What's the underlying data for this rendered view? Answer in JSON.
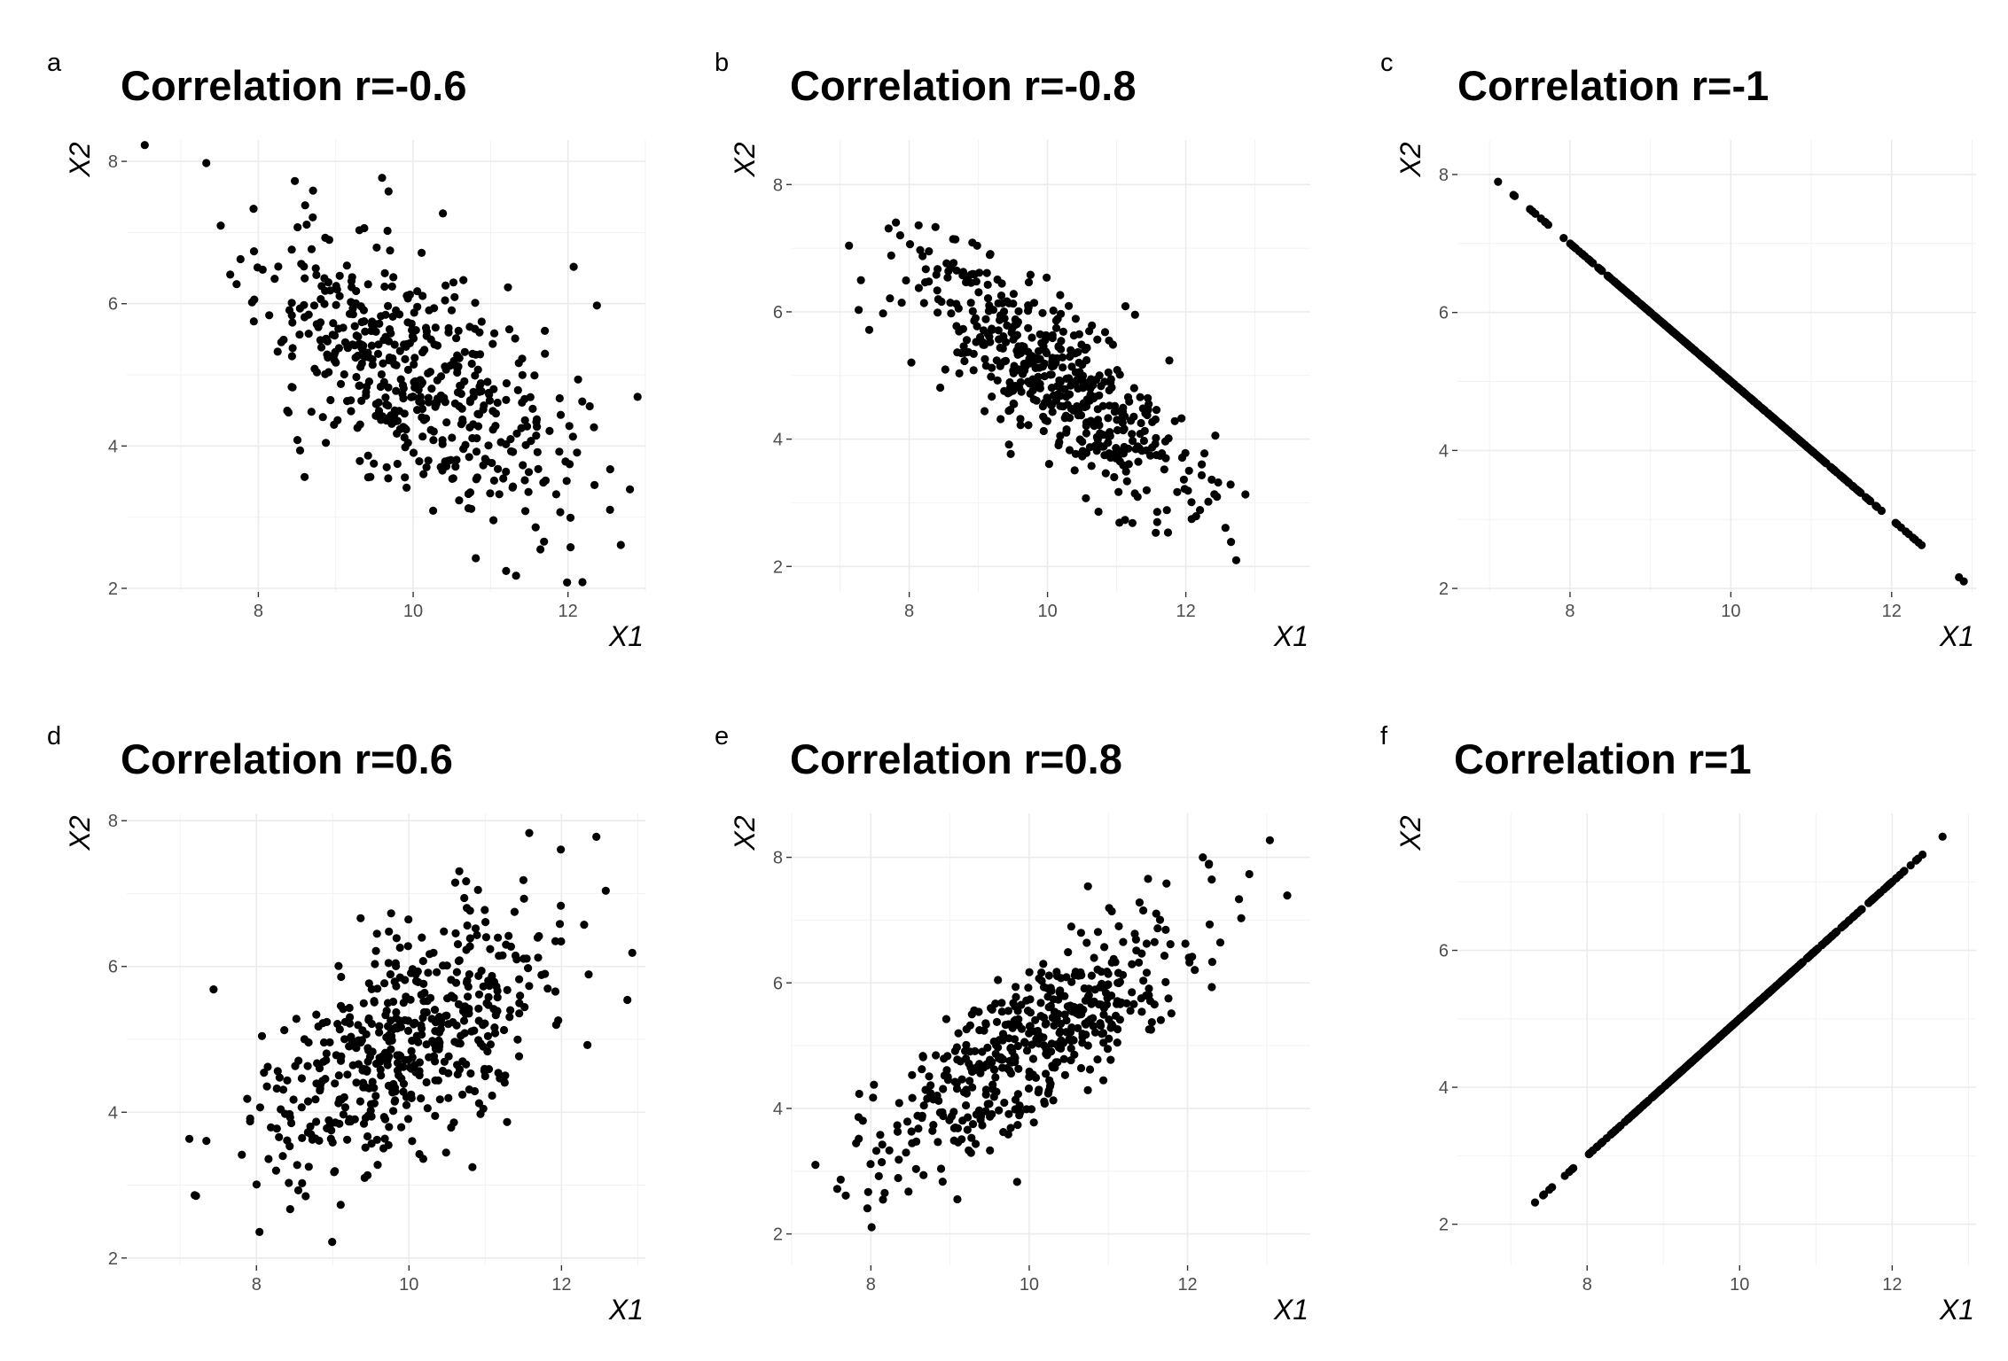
{
  "chart_data": [
    {
      "letter": "a",
      "type": "scatter",
      "title": "Correlation r=-0.6",
      "xlabel": "X1",
      "ylabel": "X2",
      "r": -0.6,
      "n": 500,
      "seed": 11,
      "xlim": [
        6.3,
        13.0
      ],
      "ylim": [
        1.95,
        8.3
      ],
      "xticks": [
        8,
        10,
        12
      ],
      "yticks": [
        2,
        4,
        6,
        8
      ],
      "grid": true,
      "legend": "none",
      "color": "#000000"
    },
    {
      "letter": "b",
      "type": "scatter",
      "title": "Correlation r=-0.8",
      "xlabel": "X1",
      "ylabel": "X2",
      "r": -0.8,
      "n": 500,
      "seed": 23,
      "xlim": [
        6.3,
        13.8
      ],
      "ylim": [
        1.6,
        8.7
      ],
      "xticks": [
        8,
        10,
        12
      ],
      "yticks": [
        2,
        4,
        6,
        8
      ],
      "grid": true,
      "legend": "none",
      "color": "#000000"
    },
    {
      "letter": "c",
      "type": "scatter",
      "title": "Correlation r=-1",
      "xlabel": "X1",
      "ylabel": "X2",
      "r": -1,
      "n": 500,
      "seed": 37,
      "xlim": [
        6.6,
        13.05
      ],
      "ylim": [
        1.95,
        8.5
      ],
      "xticks": [
        8,
        10,
        12
      ],
      "yticks": [
        2,
        4,
        6,
        8
      ],
      "grid": true,
      "legend": "none",
      "color": "#000000"
    },
    {
      "letter": "d",
      "type": "scatter",
      "title": "Correlation r=0.6",
      "xlabel": "X1",
      "ylabel": "X2",
      "r": 0.6,
      "n": 500,
      "seed": 41,
      "xlim": [
        6.3,
        13.1
      ],
      "ylim": [
        1.9,
        8.1
      ],
      "xticks": [
        8,
        10,
        12
      ],
      "yticks": [
        2,
        4,
        6,
        8
      ],
      "grid": true,
      "legend": "none",
      "color": "#000000"
    },
    {
      "letter": "e",
      "type": "scatter",
      "title": "Correlation r=0.8",
      "xlabel": "X1",
      "ylabel": "X2",
      "r": 0.8,
      "n": 500,
      "seed": 53,
      "xlim": [
        7.0,
        13.55
      ],
      "ylim": [
        1.5,
        8.7
      ],
      "xticks": [
        8,
        10,
        12
      ],
      "yticks": [
        2,
        4,
        6,
        8
      ],
      "grid": true,
      "legend": "none",
      "color": "#000000"
    },
    {
      "letter": "f",
      "type": "scatter",
      "title": "Correlation r=1",
      "xlabel": "X1",
      "ylabel": "X2",
      "r": 1,
      "n": 500,
      "seed": 67,
      "xlim": [
        6.3,
        13.1
      ],
      "ylim": [
        1.4,
        8.0
      ],
      "xticks": [
        8,
        10,
        12
      ],
      "yticks": [
        2,
        4,
        6
      ],
      "grid": true,
      "legend": "none",
      "color": "#000000"
    }
  ]
}
